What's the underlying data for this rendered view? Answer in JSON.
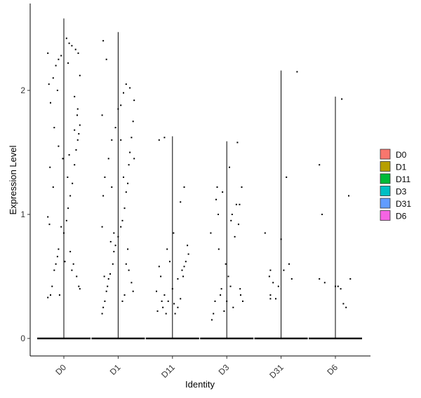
{
  "chart_data": {
    "type": "violin",
    "xlabel": "Identity",
    "ylabel": "Expression Level",
    "ylim": [
      -0.15,
      2.7
    ],
    "yticks": [
      0,
      1,
      2
    ],
    "grid": false,
    "legend_position": "right",
    "categories": [
      "D0",
      "D1",
      "D11",
      "D3",
      "D31",
      "D6"
    ],
    "legend": [
      {
        "label": "D0",
        "color": "#F8766D"
      },
      {
        "label": "D1",
        "color": "#B79F00"
      },
      {
        "label": "D11",
        "color": "#00BA38"
      },
      {
        "label": "D3",
        "color": "#00BFC4"
      },
      {
        "label": "D31",
        "color": "#619CFF"
      },
      {
        "label": "D6",
        "color": "#F564E3"
      }
    ],
    "series": [
      {
        "category": "D0",
        "max": 2.58,
        "points": [
          [
            -0.3,
            0.33
          ],
          [
            -0.25,
            0.35
          ],
          [
            -0.22,
            0.42
          ],
          [
            -0.18,
            0.55
          ],
          [
            -0.15,
            0.6
          ],
          [
            -0.12,
            0.66
          ],
          [
            -0.1,
            0.72
          ],
          [
            -0.05,
            0.9
          ],
          [
            0.0,
            0.85
          ],
          [
            0.05,
            0.95
          ],
          [
            0.08,
            1.05
          ],
          [
            0.12,
            1.15
          ],
          [
            0.16,
            1.25
          ],
          [
            0.2,
            1.4
          ],
          [
            0.23,
            1.52
          ],
          [
            0.26,
            1.6
          ],
          [
            0.28,
            1.65
          ],
          [
            0.3,
            1.72
          ],
          [
            0.25,
            1.8
          ],
          [
            0.2,
            1.95
          ],
          [
            -0.28,
            2.05
          ],
          [
            -0.2,
            2.1
          ],
          [
            -0.15,
            2.2
          ],
          [
            -0.1,
            2.25
          ],
          [
            -0.05,
            2.28
          ],
          [
            0.05,
            2.42
          ],
          [
            0.1,
            2.38
          ],
          [
            0.15,
            2.36
          ],
          [
            0.22,
            2.33
          ],
          [
            0.27,
            2.3
          ],
          [
            0.3,
            2.12
          ],
          [
            -0.25,
            1.9
          ],
          [
            -0.18,
            1.7
          ],
          [
            -0.1,
            1.55
          ],
          [
            -0.02,
            1.45
          ],
          [
            0.07,
            1.3
          ],
          [
            0.12,
            0.7
          ],
          [
            0.18,
            0.6
          ],
          [
            0.24,
            0.5
          ],
          [
            0.28,
            0.42
          ],
          [
            -0.3,
            0.98
          ],
          [
            -0.26,
            1.38
          ],
          [
            -0.2,
            1.22
          ],
          [
            -0.08,
            0.35
          ],
          [
            0.3,
            0.4
          ],
          [
            -0.27,
            0.92
          ],
          [
            0.02,
            0.62
          ],
          [
            0.15,
            0.55
          ],
          [
            0.1,
            1.48
          ],
          [
            -0.12,
            2.0
          ],
          [
            0.2,
            1.68
          ],
          [
            0.26,
            1.85
          ],
          [
            0.08,
            2.22
          ],
          [
            -0.3,
            2.3
          ]
        ]
      },
      {
        "category": "D1",
        "max": 2.47,
        "points": [
          [
            -0.3,
            0.2
          ],
          [
            -0.28,
            0.25
          ],
          [
            -0.25,
            0.3
          ],
          [
            -0.22,
            0.38
          ],
          [
            -0.2,
            0.42
          ],
          [
            -0.18,
            0.48
          ],
          [
            -0.15,
            0.52
          ],
          [
            -0.1,
            0.6
          ],
          [
            -0.08,
            0.7
          ],
          [
            -0.05,
            0.75
          ],
          [
            0.0,
            0.82
          ],
          [
            0.05,
            0.9
          ],
          [
            0.08,
            0.95
          ],
          [
            0.12,
            1.05
          ],
          [
            0.15,
            1.18
          ],
          [
            0.18,
            1.25
          ],
          [
            0.2,
            1.4
          ],
          [
            0.22,
            1.5
          ],
          [
            0.25,
            1.62
          ],
          [
            0.28,
            1.75
          ],
          [
            0.3,
            1.92
          ],
          [
            0.22,
            2.02
          ],
          [
            0.15,
            2.05
          ],
          [
            0.1,
            1.98
          ],
          [
            0.05,
            1.88
          ],
          [
            -0.05,
            1.7
          ],
          [
            -0.12,
            1.6
          ],
          [
            -0.18,
            1.45
          ],
          [
            -0.25,
            1.3
          ],
          [
            -0.28,
            1.15
          ],
          [
            -0.3,
            0.9
          ],
          [
            -0.22,
            2.25
          ],
          [
            -0.28,
            2.4
          ],
          [
            0.0,
            1.85
          ],
          [
            0.05,
            1.6
          ],
          [
            0.1,
            1.3
          ],
          [
            0.15,
            0.6
          ],
          [
            0.2,
            0.55
          ],
          [
            0.25,
            0.45
          ],
          [
            0.28,
            0.38
          ],
          [
            0.12,
            0.35
          ],
          [
            0.08,
            0.3
          ],
          [
            -0.08,
            0.85
          ],
          [
            -0.14,
            0.78
          ],
          [
            -0.26,
            0.5
          ],
          [
            -0.12,
            1.22
          ],
          [
            0.18,
            0.72
          ],
          [
            -0.3,
            1.8
          ],
          [
            0.3,
            1.45
          ]
        ]
      },
      {
        "category": "D11",
        "max": 1.63,
        "points": [
          [
            -0.3,
            0.38
          ],
          [
            -0.28,
            0.22
          ],
          [
            -0.25,
            0.58
          ],
          [
            -0.22,
            0.5
          ],
          [
            -0.2,
            0.3
          ],
          [
            -0.18,
            0.25
          ],
          [
            -0.15,
            0.35
          ],
          [
            -0.1,
            0.72
          ],
          [
            -0.05,
            0.62
          ],
          [
            0.0,
            0.4
          ],
          [
            0.03,
            0.28
          ],
          [
            0.05,
            0.2
          ],
          [
            0.1,
            0.25
          ],
          [
            0.15,
            0.32
          ],
          [
            0.2,
            0.5
          ],
          [
            0.22,
            0.58
          ],
          [
            0.25,
            0.62
          ],
          [
            0.28,
            0.75
          ],
          [
            0.3,
            0.68
          ],
          [
            -0.25,
            1.6
          ],
          [
            -0.15,
            1.62
          ],
          [
            0.15,
            1.1
          ],
          [
            0.22,
            1.22
          ],
          [
            0.1,
            0.48
          ],
          [
            -0.08,
            0.3
          ],
          [
            0.18,
            0.55
          ],
          [
            -0.12,
            0.2
          ],
          [
            0.02,
            0.85
          ]
        ]
      },
      {
        "category": "D3",
        "max": 1.59,
        "points": [
          [
            -0.3,
            0.85
          ],
          [
            -0.28,
            0.15
          ],
          [
            -0.25,
            0.2
          ],
          [
            -0.22,
            0.3
          ],
          [
            -0.2,
            1.12
          ],
          [
            -0.18,
            1.22
          ],
          [
            -0.15,
            0.72
          ],
          [
            -0.12,
            0.35
          ],
          [
            -0.1,
            0.4
          ],
          [
            -0.05,
            0.22
          ],
          [
            0.0,
            0.3
          ],
          [
            0.03,
            0.5
          ],
          [
            0.05,
            1.38
          ],
          [
            0.08,
            0.95
          ],
          [
            0.1,
            1.0
          ],
          [
            0.15,
            0.82
          ],
          [
            0.18,
            1.08
          ],
          [
            0.2,
            1.58
          ],
          [
            0.22,
            0.92
          ],
          [
            0.25,
            0.4
          ],
          [
            0.28,
            1.22
          ],
          [
            0.3,
            0.3
          ],
          [
            -0.08,
            1.18
          ],
          [
            0.12,
            0.25
          ],
          [
            0.26,
            0.35
          ],
          [
            -0.02,
            0.6
          ],
          [
            0.24,
            1.08
          ],
          [
            -0.16,
            1.0
          ],
          [
            0.07,
            0.42
          ]
        ]
      },
      {
        "category": "D31",
        "max": 2.16,
        "points": [
          [
            -0.3,
            0.85
          ],
          [
            -0.22,
            0.5
          ],
          [
            -0.2,
            0.35
          ],
          [
            -0.15,
            0.45
          ],
          [
            -0.05,
            0.42
          ],
          [
            0.0,
            0.8
          ],
          [
            0.05,
            0.55
          ],
          [
            0.1,
            1.3
          ],
          [
            0.15,
            0.6
          ],
          [
            0.2,
            0.48
          ],
          [
            0.3,
            2.15
          ],
          [
            -0.2,
            0.32
          ],
          [
            -0.1,
            0.32
          ],
          [
            -0.2,
            0.55
          ]
        ]
      },
      {
        "category": "D6",
        "max": 1.95,
        "points": [
          [
            -0.3,
            1.4
          ],
          [
            -0.25,
            1.0
          ],
          [
            -0.2,
            0.45
          ],
          [
            -0.3,
            0.48
          ],
          [
            0.05,
            0.42
          ],
          [
            0.1,
            0.4
          ],
          [
            0.15,
            0.28
          ],
          [
            0.2,
            0.25
          ],
          [
            0.25,
            1.15
          ],
          [
            0.28,
            0.48
          ],
          [
            0.12,
            1.93
          ],
          [
            0.0,
            0.42
          ]
        ]
      }
    ]
  }
}
